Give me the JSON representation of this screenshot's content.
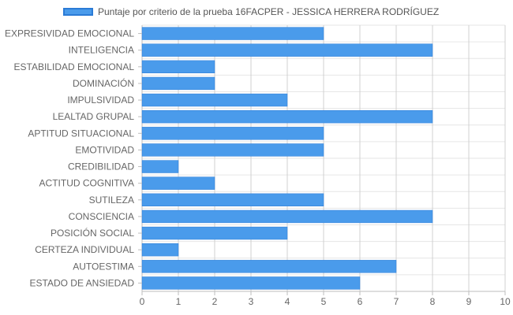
{
  "chart_data": {
    "type": "bar",
    "orientation": "horizontal",
    "categories": [
      "EXPRESIVIDAD EMOCIONAL",
      "INTELIGENCIA",
      "ESTABILIDAD EMOCIONAL",
      "DOMINACIÓN",
      "IMPULSIVIDAD",
      "LEALTAD GRUPAL",
      "APTITUD SITUACIONAL",
      "EMOTIVIDAD",
      "CREDIBILIDAD",
      "ACTITUD COGNITIVA",
      "SUTILEZA",
      "CONSCIENCIA",
      "POSICIÓN SOCIAL",
      "CERTEZA INDIVIDUAL",
      "AUTOESTIMA",
      "ESTADO DE ANSIEDAD"
    ],
    "series": [
      {
        "name": "Puntaje por criterio de la prueba 16FACPER - JESSICA HERRERA RODRÍGUEZ",
        "values": [
          5,
          8,
          2,
          2,
          4,
          8,
          5,
          5,
          1,
          2,
          5,
          8,
          4,
          1,
          7,
          6
        ],
        "color": "#4A9BEB",
        "border_color": "#2B7BD6"
      }
    ],
    "xlim": [
      0,
      10
    ],
    "xticks": [
      0,
      1,
      2,
      3,
      4,
      5,
      6,
      7,
      8,
      9,
      10
    ],
    "grid": true,
    "legend_position": "top",
    "title": "",
    "xlabel": "",
    "ylabel": ""
  }
}
